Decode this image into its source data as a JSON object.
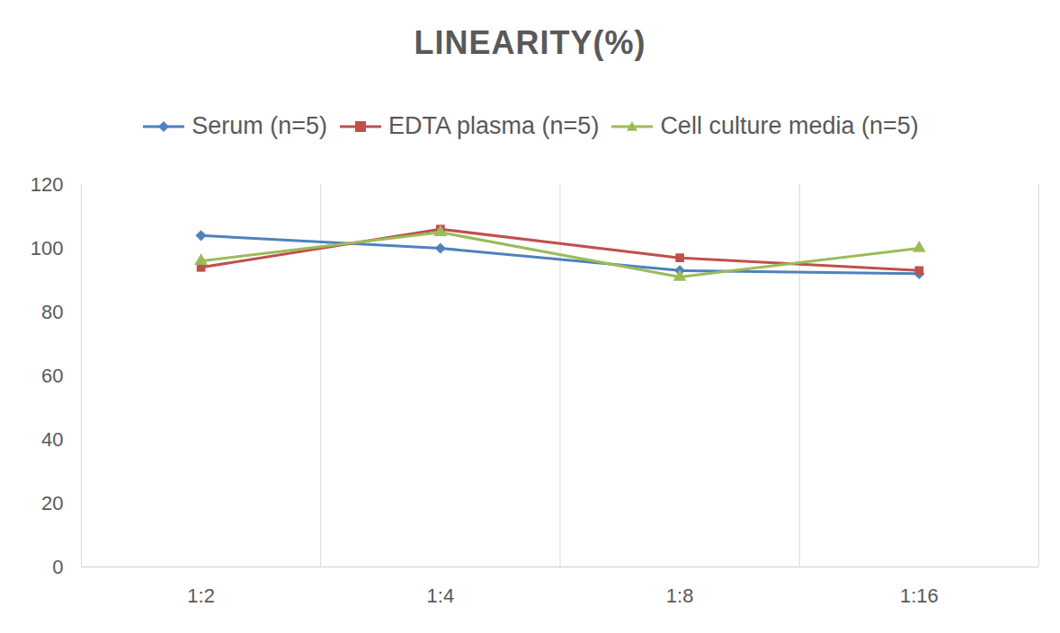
{
  "chart_data": {
    "type": "line",
    "title": "LINEARITY(%)",
    "categories": [
      "1:2",
      "1:4",
      "1:8",
      "1:16"
    ],
    "series": [
      {
        "name": "Serum (n=5)",
        "color": "#4f81bd",
        "marker": "diamond",
        "values": [
          104,
          100,
          93,
          92
        ]
      },
      {
        "name": "EDTA plasma (n=5)",
        "color": "#c0504d",
        "marker": "square",
        "values": [
          94,
          106,
          97,
          93
        ]
      },
      {
        "name": "Cell culture media (n=5)",
        "color": "#9bbb59",
        "marker": "triangle",
        "values": [
          96,
          105,
          91,
          100
        ]
      }
    ],
    "ylim": [
      0,
      120
    ],
    "yticks": [
      0,
      20,
      40,
      60,
      80,
      100,
      120
    ],
    "grid": true,
    "legend": "top"
  }
}
